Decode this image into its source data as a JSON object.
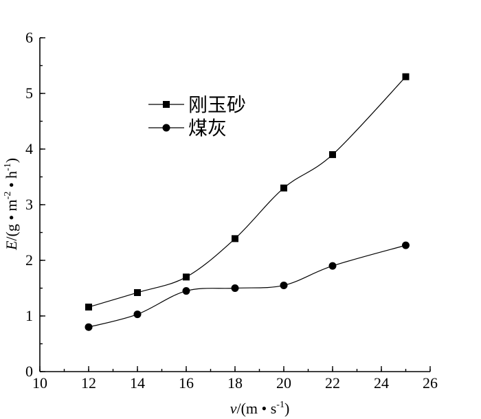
{
  "chart_data": {
    "type": "line",
    "smooth": true,
    "xlabel": {
      "italic": "v",
      "rest": "/(m • s",
      "sup": "-1",
      "tail": ")"
    },
    "ylabel": {
      "italic": "E",
      "rest1": "/(g • m",
      "sup1": "-2",
      "rest2": " • h",
      "sup2": "-1",
      "tail": ")"
    },
    "xlim": [
      10,
      26
    ],
    "ylim": [
      0,
      6
    ],
    "xticks": [
      10,
      12,
      14,
      16,
      18,
      20,
      22,
      24,
      26
    ],
    "yticks": [
      0,
      1,
      2,
      3,
      4,
      5,
      6
    ],
    "x_minor_step": 1,
    "y_minor_step": 0.5,
    "grid": false,
    "legend_position": "top-left-inside",
    "series": [
      {
        "name": "刚玉砂",
        "marker": "square",
        "color": "#000000",
        "x": [
          12,
          14,
          16,
          18,
          20,
          22,
          25
        ],
        "y": [
          1.16,
          1.42,
          1.7,
          2.39,
          3.3,
          3.9,
          5.3
        ]
      },
      {
        "name": "煤灰",
        "marker": "circle",
        "color": "#000000",
        "x": [
          12,
          14,
          16,
          18,
          20,
          22,
          25
        ],
        "y": [
          0.8,
          1.03,
          1.45,
          1.5,
          1.55,
          1.9,
          2.27
        ]
      }
    ]
  }
}
